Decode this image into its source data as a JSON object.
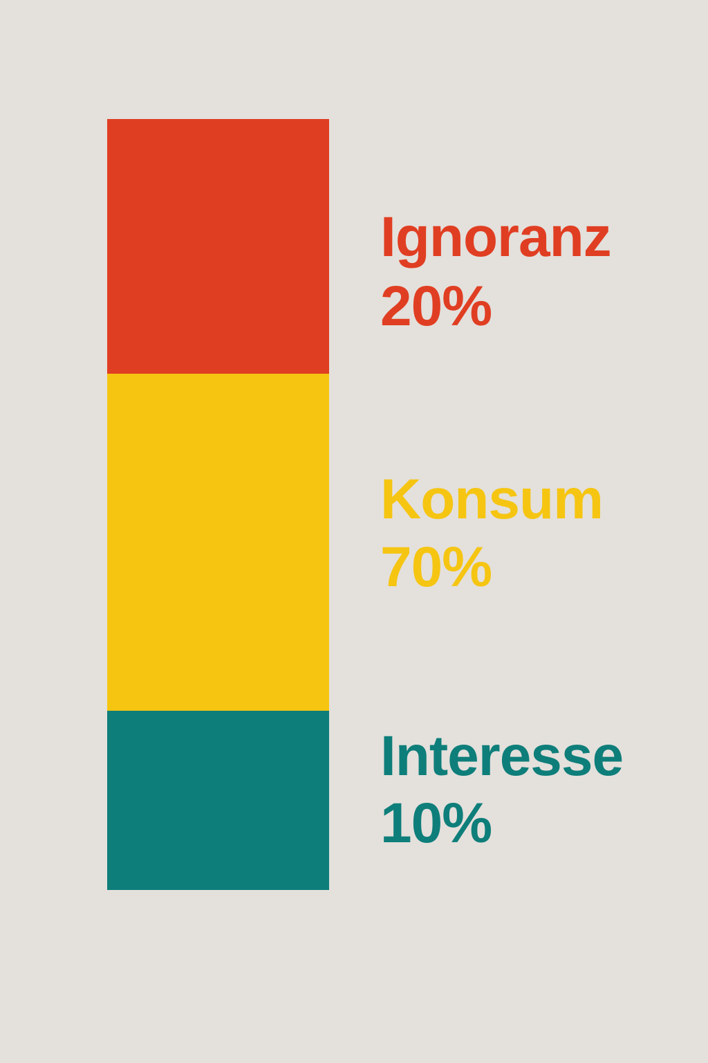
{
  "chart_data": {
    "type": "bar",
    "stacked": true,
    "orientation": "vertical",
    "unit": "%",
    "series": [
      {
        "name": "Ignoranz",
        "value": 20,
        "value_label": "20%",
        "color": "#E03E22"
      },
      {
        "name": "Konsum",
        "value": 70,
        "value_label": "70%",
        "color": "#F5C512"
      },
      {
        "name": "Interesse",
        "value": 10,
        "value_label": "10%",
        "color": "#0E7E7A"
      }
    ],
    "background": "#E4E0DC",
    "grid": false,
    "axes": false,
    "legend": "right"
  }
}
